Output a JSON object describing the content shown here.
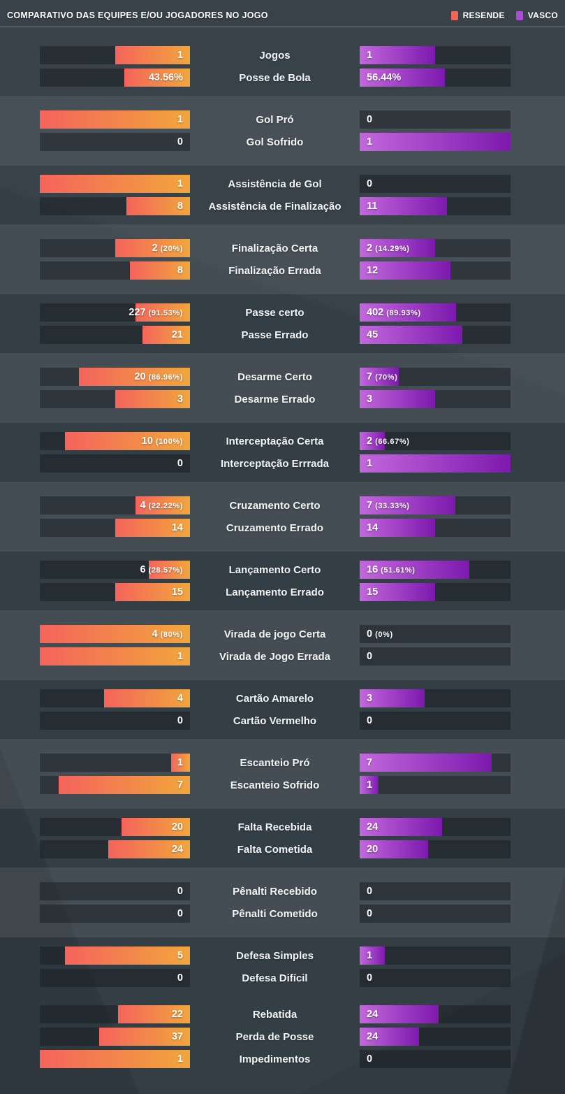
{
  "header": {
    "title": "COMPARATIVO DAS EQUIPES E/OU JOGADORES NO JOGO",
    "legend": {
      "left_label": "RESENDE",
      "right_label": "VASCO"
    }
  },
  "colors": {
    "resende_swatch": "#f3655b",
    "vasco_swatch": "#a94fd4",
    "resende_gradient_start": "#f4645c",
    "resende_gradient_end": "#f1a63c",
    "vasco_gradient_start": "#c268dc",
    "vasco_gradient_end": "#7d19ae",
    "background": "#343e45",
    "band_background": "rgba(255,255,255,0.078)",
    "track": "rgba(16,22,26,0.42)"
  },
  "chart_data": {
    "type": "bar",
    "orientation": "horizontal-mirrored",
    "title": "COMPARATIVO DAS EQUIPES E/OU JOGADORES NO JOGO",
    "series": [
      "RESENDE",
      "VASCO"
    ],
    "note": "bar width = value / (left value + right value) of each row",
    "sections": [
      {
        "band": false,
        "rows": [
          {
            "label": "Jogos",
            "left": {
              "value": 1,
              "text": "1"
            },
            "right": {
              "value": 1,
              "text": "1"
            }
          },
          {
            "label": "Posse de Bola",
            "left": {
              "value": 43.56,
              "text": "43.56%"
            },
            "right": {
              "value": 56.44,
              "text": "56.44%"
            }
          }
        ]
      },
      {
        "band": true,
        "rows": [
          {
            "label": "Gol Pró",
            "left": {
              "value": 1,
              "text": "1"
            },
            "right": {
              "value": 0,
              "text": "0"
            }
          },
          {
            "label": "Gol Sofrido",
            "left": {
              "value": 0,
              "text": "0"
            },
            "right": {
              "value": 1,
              "text": "1"
            }
          }
        ]
      },
      {
        "band": false,
        "rows": [
          {
            "label": "Assistência de Gol",
            "left": {
              "value": 1,
              "text": "1"
            },
            "right": {
              "value": 0,
              "text": "0"
            }
          },
          {
            "label": "Assistência de Finalização",
            "left": {
              "value": 8,
              "text": "8"
            },
            "right": {
              "value": 11,
              "text": "11"
            }
          }
        ]
      },
      {
        "band": true,
        "rows": [
          {
            "label": "Finalização Certa",
            "left": {
              "value": 2,
              "text": "2",
              "pct": "(20%)"
            },
            "right": {
              "value": 2,
              "text": "2",
              "pct": "(14.29%)"
            }
          },
          {
            "label": "Finalização Errada",
            "left": {
              "value": 8,
              "text": "8"
            },
            "right": {
              "value": 12,
              "text": "12"
            }
          }
        ]
      },
      {
        "band": false,
        "rows": [
          {
            "label": "Passe certo",
            "left": {
              "value": 227,
              "text": "227",
              "pct": "(91.53%)"
            },
            "right": {
              "value": 402,
              "text": "402",
              "pct": "(89.93%)"
            }
          },
          {
            "label": "Passe Errado",
            "left": {
              "value": 21,
              "text": "21"
            },
            "right": {
              "value": 45,
              "text": "45"
            }
          }
        ]
      },
      {
        "band": true,
        "rows": [
          {
            "label": "Desarme Certo",
            "left": {
              "value": 20,
              "text": "20",
              "pct": "(86.96%)"
            },
            "right": {
              "value": 7,
              "text": "7",
              "pct": "(70%)"
            }
          },
          {
            "label": "Desarme Errado",
            "left": {
              "value": 3,
              "text": "3"
            },
            "right": {
              "value": 3,
              "text": "3"
            }
          }
        ]
      },
      {
        "band": false,
        "rows": [
          {
            "label": "Interceptação Certa",
            "left": {
              "value": 10,
              "text": "10",
              "pct": "(100%)"
            },
            "right": {
              "value": 2,
              "text": "2",
              "pct": "(66.67%)"
            }
          },
          {
            "label": "Interceptação Errrada",
            "left": {
              "value": 0,
              "text": "0"
            },
            "right": {
              "value": 1,
              "text": "1"
            }
          }
        ]
      },
      {
        "band": true,
        "rows": [
          {
            "label": "Cruzamento Certo",
            "left": {
              "value": 4,
              "text": "4",
              "pct": "(22.22%)"
            },
            "right": {
              "value": 7,
              "text": "7",
              "pct": "(33.33%)"
            }
          },
          {
            "label": "Cruzamento Errado",
            "left": {
              "value": 14,
              "text": "14"
            },
            "right": {
              "value": 14,
              "text": "14"
            }
          }
        ]
      },
      {
        "band": false,
        "rows": [
          {
            "label": "Lançamento Certo",
            "left": {
              "value": 6,
              "text": "6",
              "pct": "(28.57%)"
            },
            "right": {
              "value": 16,
              "text": "16",
              "pct": "(51.61%)"
            }
          },
          {
            "label": "Lançamento Errado",
            "left": {
              "value": 15,
              "text": "15"
            },
            "right": {
              "value": 15,
              "text": "15"
            }
          }
        ]
      },
      {
        "band": true,
        "rows": [
          {
            "label": "Virada de jogo Certa",
            "left": {
              "value": 4,
              "text": "4",
              "pct": "(80%)"
            },
            "right": {
              "value": 0,
              "text": "0",
              "pct": "(0%)"
            }
          },
          {
            "label": "Virada de Jogo Errada",
            "left": {
              "value": 1,
              "text": "1"
            },
            "right": {
              "value": 0,
              "text": "0"
            }
          }
        ]
      },
      {
        "band": false,
        "rows": [
          {
            "label": "Cartão Amarelo",
            "left": {
              "value": 4,
              "text": "4"
            },
            "right": {
              "value": 3,
              "text": "3"
            }
          },
          {
            "label": "Cartão Vermelho",
            "left": {
              "value": 0,
              "text": "0"
            },
            "right": {
              "value": 0,
              "text": "0"
            }
          }
        ]
      },
      {
        "band": true,
        "rows": [
          {
            "label": "Escanteio Pró",
            "left": {
              "value": 1,
              "text": "1"
            },
            "right": {
              "value": 7,
              "text": "7"
            }
          },
          {
            "label": "Escanteio Sofrido",
            "left": {
              "value": 7,
              "text": "7"
            },
            "right": {
              "value": 1,
              "text": "1"
            }
          }
        ]
      },
      {
        "band": false,
        "rows": [
          {
            "label": "Falta Recebida",
            "left": {
              "value": 20,
              "text": "20"
            },
            "right": {
              "value": 24,
              "text": "24"
            }
          },
          {
            "label": "Falta Cometida",
            "left": {
              "value": 24,
              "text": "24"
            },
            "right": {
              "value": 20,
              "text": "20"
            }
          }
        ]
      },
      {
        "band": true,
        "rows": [
          {
            "label": "Pênalti Recebido",
            "left": {
              "value": 0,
              "text": "0"
            },
            "right": {
              "value": 0,
              "text": "0"
            }
          },
          {
            "label": "Pênalti Cometido",
            "left": {
              "value": 0,
              "text": "0"
            },
            "right": {
              "value": 0,
              "text": "0"
            }
          }
        ]
      },
      {
        "band": false,
        "rows": [
          {
            "label": "Defesa Simples",
            "left": {
              "value": 5,
              "text": "5"
            },
            "right": {
              "value": 1,
              "text": "1"
            }
          },
          {
            "label": "Defesa Difícil",
            "left": {
              "value": 0,
              "text": "0"
            },
            "right": {
              "value": 0,
              "text": "0"
            }
          }
        ]
      },
      {
        "band": false,
        "rows": [
          {
            "label": "Rebatida",
            "left": {
              "value": 22,
              "text": "22"
            },
            "right": {
              "value": 24,
              "text": "24"
            }
          },
          {
            "label": "Perda de Posse",
            "left": {
              "value": 37,
              "text": "37"
            },
            "right": {
              "value": 24,
              "text": "24"
            }
          },
          {
            "label": "Impedimentos",
            "left": {
              "value": 1,
              "text": "1"
            },
            "right": {
              "value": 0,
              "text": "0"
            }
          }
        ]
      }
    ]
  }
}
